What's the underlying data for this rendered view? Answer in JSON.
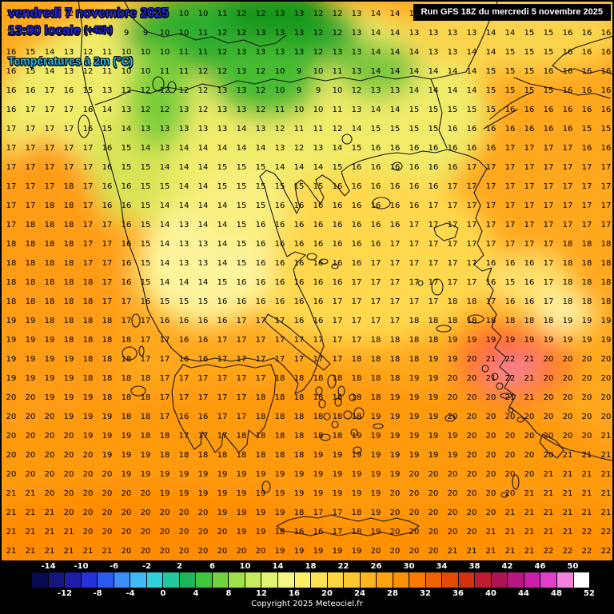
{
  "header": {
    "date_line": "vendredi 7 novembre 2025",
    "time_line": "13:00 locale",
    "offset_label": "(+42h)",
    "param_line": "Températures à 2m (°C)"
  },
  "run_banner": {
    "text": "Run GFS 18Z du mercredi 5 novembre 2025"
  },
  "footer": {
    "copyright": "Copyright 2025 Meteociel.fr"
  },
  "colors": {
    "title_blue": "#2026e0",
    "param_cyan": "#20bdf5",
    "land_outline": "#151515",
    "legend_bg": "#000000",
    "value_text": "#000000"
  },
  "scale": {
    "unit": "°C",
    "top_labels": [
      "-14",
      "-10",
      "-6",
      "-2",
      "2",
      "6",
      "10",
      "14",
      "18",
      "22",
      "26",
      "30",
      "34",
      "38",
      "42",
      "46",
      "50"
    ],
    "bottom_labels": [
      "-12",
      "-8",
      "-4",
      "0",
      "4",
      "8",
      "12",
      "16",
      "20",
      "24",
      "28",
      "32",
      "36",
      "40",
      "44",
      "48",
      "52"
    ],
    "cells": [
      "#0a0a50",
      "#15157e",
      "#1d1daa",
      "#2632d8",
      "#2a5af0",
      "#3e8efa",
      "#44b8f4",
      "#30d2da",
      "#25c89e",
      "#20b458",
      "#3ec63c",
      "#70d23c",
      "#9ce04c",
      "#c4ec5e",
      "#e1f472",
      "#f5f884",
      "#fdf064",
      "#ffe352",
      "#ffd540",
      "#ffc62e",
      "#ffb51e",
      "#ffa30f",
      "#ff8f03",
      "#fa7900",
      "#f16200",
      "#e54a00",
      "#d43110",
      "#c01c30",
      "#ac1454",
      "#b81880",
      "#cc1fa9",
      "#e23fc8",
      "#f483df",
      "#ffffff"
    ]
  },
  "map": {
    "temperature_grid": {
      "cols": 32,
      "rows": [
        [
          15,
          14,
          13,
          12,
          11,
          10,
          10,
          9,
          9,
          10,
          10,
          11,
          12,
          12,
          13,
          13,
          12,
          12,
          13,
          14,
          14,
          13,
          13,
          12,
          13,
          13,
          14,
          15,
          15,
          15,
          16,
          16
        ],
        [
          15,
          14,
          13,
          12,
          11,
          10,
          9,
          9,
          10,
          10,
          11,
          12,
          12,
          13,
          13,
          13,
          12,
          12,
          13,
          14,
          14,
          13,
          13,
          13,
          13,
          14,
          14,
          15,
          15,
          16,
          16,
          16
        ],
        [
          16,
          15,
          14,
          13,
          12,
          11,
          10,
          10,
          10,
          11,
          11,
          12,
          13,
          13,
          13,
          13,
          12,
          13,
          13,
          14,
          14,
          14,
          13,
          13,
          14,
          14,
          15,
          15,
          15,
          16,
          16,
          16
        ],
        [
          16,
          15,
          14,
          13,
          12,
          11,
          10,
          10,
          11,
          11,
          12,
          12,
          13,
          12,
          10,
          9,
          10,
          11,
          13,
          14,
          14,
          14,
          14,
          14,
          14,
          15,
          15,
          15,
          16,
          16,
          16,
          16
        ],
        [
          16,
          16,
          17,
          16,
          15,
          13,
          12,
          12,
          12,
          12,
          12,
          13,
          13,
          12,
          10,
          9,
          9,
          10,
          12,
          13,
          13,
          14,
          14,
          14,
          14,
          15,
          15,
          15,
          15,
          16,
          16,
          16
        ],
        [
          16,
          17,
          17,
          17,
          16,
          14,
          13,
          12,
          12,
          13,
          12,
          13,
          13,
          12,
          11,
          10,
          10,
          11,
          13,
          14,
          14,
          15,
          15,
          15,
          15,
          15,
          16,
          16,
          16,
          16,
          16,
          16
        ],
        [
          17,
          17,
          17,
          17,
          16,
          15,
          14,
          13,
          13,
          13,
          13,
          13,
          14,
          13,
          12,
          11,
          11,
          12,
          14,
          15,
          15,
          15,
          15,
          16,
          16,
          16,
          16,
          16,
          16,
          16,
          15,
          15
        ],
        [
          17,
          17,
          17,
          17,
          17,
          16,
          15,
          14,
          13,
          14,
          14,
          14,
          14,
          14,
          13,
          12,
          13,
          14,
          15,
          16,
          16,
          16,
          16,
          16,
          16,
          16,
          17,
          17,
          17,
          17,
          16,
          16
        ],
        [
          17,
          17,
          17,
          17,
          17,
          16,
          15,
          15,
          14,
          14,
          14,
          15,
          15,
          15,
          14,
          14,
          14,
          15,
          16,
          16,
          16,
          16,
          16,
          16,
          17,
          17,
          17,
          17,
          17,
          17,
          17,
          17
        ],
        [
          17,
          17,
          17,
          18,
          17,
          16,
          16,
          15,
          15,
          14,
          14,
          15,
          15,
          15,
          15,
          15,
          15,
          16,
          16,
          16,
          16,
          16,
          16,
          17,
          17,
          17,
          17,
          17,
          17,
          17,
          17,
          17
        ],
        [
          17,
          17,
          18,
          18,
          17,
          16,
          16,
          15,
          14,
          14,
          14,
          14,
          15,
          15,
          16,
          16,
          16,
          16,
          16,
          16,
          16,
          16,
          17,
          17,
          17,
          17,
          17,
          17,
          17,
          17,
          17,
          17
        ],
        [
          17,
          18,
          18,
          18,
          17,
          17,
          16,
          15,
          14,
          13,
          14,
          14,
          15,
          16,
          16,
          16,
          16,
          16,
          16,
          16,
          16,
          17,
          17,
          17,
          17,
          17,
          17,
          17,
          17,
          17,
          17,
          17
        ],
        [
          18,
          18,
          18,
          18,
          17,
          17,
          16,
          15,
          14,
          13,
          13,
          14,
          15,
          16,
          16,
          16,
          16,
          16,
          16,
          16,
          17,
          17,
          17,
          17,
          17,
          17,
          17,
          17,
          17,
          18,
          18,
          18
        ],
        [
          18,
          18,
          18,
          18,
          17,
          17,
          16,
          15,
          14,
          13,
          13,
          14,
          15,
          16,
          16,
          16,
          16,
          16,
          16,
          17,
          17,
          17,
          17,
          17,
          17,
          16,
          16,
          16,
          17,
          18,
          18,
          18
        ],
        [
          18,
          18,
          18,
          18,
          18,
          17,
          16,
          15,
          14,
          14,
          14,
          15,
          16,
          16,
          16,
          16,
          16,
          16,
          17,
          17,
          17,
          17,
          17,
          17,
          17,
          16,
          15,
          16,
          17,
          18,
          18,
          18
        ],
        [
          18,
          18,
          18,
          18,
          18,
          17,
          17,
          16,
          15,
          15,
          15,
          16,
          16,
          16,
          16,
          16,
          16,
          17,
          17,
          17,
          17,
          17,
          17,
          18,
          18,
          17,
          16,
          16,
          17,
          18,
          18,
          18
        ],
        [
          19,
          19,
          18,
          18,
          18,
          18,
          17,
          17,
          16,
          16,
          16,
          16,
          17,
          17,
          17,
          16,
          16,
          17,
          17,
          17,
          17,
          18,
          18,
          18,
          18,
          18,
          18,
          18,
          18,
          19,
          19,
          19
        ],
        [
          19,
          19,
          19,
          18,
          18,
          18,
          18,
          17,
          17,
          16,
          16,
          17,
          17,
          17,
          17,
          17,
          17,
          17,
          17,
          18,
          18,
          18,
          18,
          19,
          19,
          19,
          19,
          19,
          19,
          19,
          19,
          19
        ],
        [
          19,
          19,
          19,
          19,
          18,
          18,
          18,
          17,
          17,
          16,
          16,
          17,
          17,
          17,
          17,
          17,
          17,
          17,
          18,
          18,
          18,
          18,
          19,
          19,
          20,
          21,
          22,
          21,
          20,
          20,
          20,
          20
        ],
        [
          19,
          19,
          19,
          19,
          18,
          18,
          18,
          18,
          17,
          17,
          17,
          17,
          17,
          17,
          18,
          18,
          18,
          18,
          18,
          18,
          18,
          19,
          19,
          20,
          20,
          21,
          22,
          21,
          20,
          20,
          20,
          20
        ],
        [
          20,
          20,
          19,
          19,
          19,
          18,
          18,
          18,
          17,
          17,
          17,
          17,
          17,
          18,
          18,
          18,
          18,
          18,
          18,
          18,
          19,
          19,
          19,
          20,
          20,
          20,
          21,
          21,
          20,
          20,
          20,
          20
        ],
        [
          20,
          20,
          20,
          19,
          19,
          19,
          18,
          18,
          17,
          16,
          16,
          17,
          17,
          18,
          18,
          18,
          18,
          18,
          18,
          19,
          19,
          19,
          19,
          20,
          20,
          20,
          20,
          20,
          20,
          20,
          20,
          20
        ],
        [
          20,
          20,
          20,
          20,
          19,
          19,
          19,
          18,
          18,
          17,
          17,
          17,
          18,
          18,
          18,
          18,
          18,
          18,
          19,
          19,
          19,
          19,
          19,
          19,
          20,
          20,
          20,
          20,
          20,
          20,
          20,
          21
        ],
        [
          20,
          20,
          20,
          20,
          20,
          19,
          19,
          19,
          18,
          18,
          18,
          18,
          18,
          18,
          18,
          18,
          19,
          19,
          19,
          19,
          19,
          19,
          19,
          19,
          20,
          20,
          20,
          20,
          20,
          21,
          21,
          21
        ],
        [
          20,
          20,
          20,
          20,
          20,
          20,
          19,
          19,
          19,
          19,
          19,
          19,
          19,
          19,
          19,
          19,
          19,
          19,
          19,
          19,
          19,
          20,
          20,
          20,
          20,
          20,
          20,
          20,
          21,
          21,
          21,
          21
        ],
        [
          21,
          21,
          20,
          20,
          20,
          20,
          20,
          20,
          19,
          19,
          19,
          19,
          19,
          19,
          19,
          19,
          19,
          19,
          19,
          19,
          20,
          20,
          20,
          20,
          20,
          20,
          20,
          21,
          21,
          21,
          21,
          21
        ],
        [
          21,
          21,
          21,
          20,
          20,
          20,
          20,
          20,
          20,
          20,
          20,
          19,
          19,
          19,
          19,
          18,
          17,
          17,
          18,
          19,
          20,
          20,
          20,
          20,
          20,
          20,
          21,
          21,
          21,
          21,
          21,
          21
        ],
        [
          21,
          21,
          21,
          21,
          20,
          20,
          20,
          20,
          20,
          20,
          20,
          20,
          19,
          19,
          18,
          16,
          16,
          17,
          18,
          19,
          20,
          20,
          20,
          20,
          20,
          21,
          21,
          21,
          21,
          21,
          22,
          22
        ],
        [
          21,
          21,
          21,
          21,
          21,
          21,
          20,
          20,
          20,
          20,
          20,
          20,
          20,
          20,
          19,
          19,
          19,
          19,
          19,
          20,
          20,
          20,
          20,
          21,
          21,
          21,
          21,
          21,
          22,
          22,
          22,
          22
        ]
      ]
    }
  }
}
